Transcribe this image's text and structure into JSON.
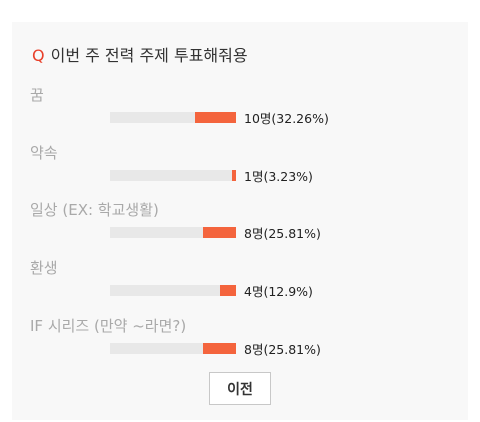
{
  "poll": {
    "question_mark": "Q",
    "question": "이번 주 전력 주제 투표해줘용",
    "options": [
      {
        "label": "꿈",
        "result": "10명(32.26%)",
        "percent": 32.26
      },
      {
        "label": "약속",
        "result": "1명(3.23%)",
        "percent": 3.23
      },
      {
        "label": "일상 (EX: 학교생활)",
        "result": "8명(25.81%)",
        "percent": 25.81
      },
      {
        "label": "환생",
        "result": "4명(12.9%)",
        "percent": 12.9
      },
      {
        "label": "IF 시리즈 (만약 ~라면?)",
        "result": "8명(25.81%)",
        "percent": 25.81
      }
    ],
    "prev_label": "이전",
    "colors": {
      "accent": "#e8402a",
      "bar_fill": "#f4643d",
      "bar_track": "#e8e8e8",
      "card_bg": "#f8f8f8"
    }
  }
}
